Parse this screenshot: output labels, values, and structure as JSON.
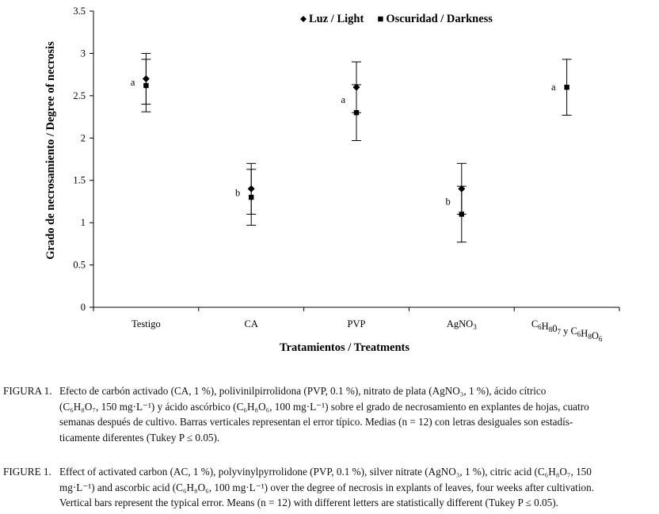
{
  "chart_data": {
    "type": "scatter",
    "ylabel": "Grado de necrosamiento / Degree of necrosis",
    "xlabel": "Tratamientos / Treatments",
    "ylim": [
      0,
      3.5
    ],
    "yticks": [
      "0",
      "0.5",
      "1",
      "1.5",
      "2",
      "2.5",
      "3",
      "3.5"
    ],
    "grid": false,
    "legend_position": "top-center",
    "categories": [
      "Testigo",
      "CA",
      "PVP",
      "AgNO₃",
      "C₆H₈0₇ y C₆H₈O₆"
    ],
    "series": [
      {
        "name": "Luz / Light",
        "marker": "diamond",
        "values": [
          2.7,
          1.4,
          2.6,
          1.4,
          null
        ],
        "error": [
          0.3,
          0.3,
          0.3,
          0.3,
          null
        ]
      },
      {
        "name": "Oscuridad / Darkness",
        "marker": "square",
        "values": [
          2.62,
          1.3,
          2.3,
          1.1,
          2.6
        ],
        "error": [
          0.31,
          0.33,
          0.33,
          0.33,
          0.33
        ]
      }
    ],
    "group_letters": [
      "a",
      "b",
      "a",
      "b",
      "a"
    ]
  },
  "caption_es": {
    "label": "FIGURA 1.",
    "lines": [
      "Efecto de carbón activado (CA, 1 %), polivinilpirrolidona (PVP, 0.1 %), nitrato de plata (AgNO₃, 1 %), ácido cítrico",
      "(C₆H₈O₇, 150 mg·L⁻¹) y ácido ascórbico (C₆H₈O₆, 100 mg·L⁻¹) sobre el grado de necrosamiento en explantes de hojas, cuatro",
      "semanas después de cultivo. Barras verticales representan el error típico. Medias (n = 12) con letras desiguales son estadís-",
      "ticamente diferentes (Tukey P ≤ 0.05)."
    ]
  },
  "caption_en": {
    "label": "FIGURE 1.",
    "lines": [
      "Effect of activated carbon (AC, 1 %), polyvinylpyrrolidone (PVP, 0.1 %), silver nitrate (AgNO₃, 1 %), citric acid (C₆H₈O₇, 150",
      "mg·L⁻¹) and ascorbic acid (C₆H₈O₆, 100 mg·L⁻¹) over the degree of necrosis in explants of leaves, four weeks after cultivation.",
      "Vertical bars represent the typical error. Means (n = 12) with different letters are statistically different (Tukey P  ≤ 0.05)."
    ]
  }
}
